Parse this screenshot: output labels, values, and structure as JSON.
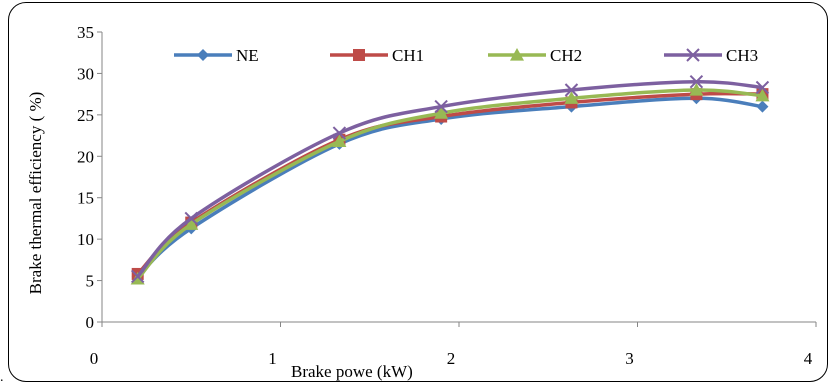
{
  "chart_data": {
    "type": "line",
    "title": "",
    "xlabel": "Brake powe (kW)",
    "ylabel": "Brake thermal efficiency ( %)",
    "xlim": [
      0,
      4
    ],
    "ylim": [
      0,
      35
    ],
    "xticks": [
      0,
      1,
      2,
      3,
      4
    ],
    "yticks": [
      0,
      5,
      10,
      15,
      20,
      25,
      30,
      35
    ],
    "grid": false,
    "smooth": true,
    "legend_position": "top",
    "series": [
      {
        "name": "NE",
        "color": "#4a7ebb",
        "marker": "diamond",
        "x": [
          0.2,
          0.5,
          1.33,
          1.9,
          2.63,
          3.33,
          3.7
        ],
        "y": [
          5.5,
          11.3,
          21.5,
          24.5,
          26.0,
          27.0,
          26.0
        ]
      },
      {
        "name": "CH1",
        "color": "#be4b48",
        "marker": "square",
        "x": [
          0.2,
          0.5,
          1.33,
          1.9,
          2.63,
          3.33,
          3.7
        ],
        "y": [
          5.8,
          12.0,
          22.0,
          24.8,
          26.5,
          27.5,
          27.5
        ]
      },
      {
        "name": "CH2",
        "color": "#98b954",
        "marker": "triangle",
        "x": [
          0.2,
          0.5,
          1.33,
          1.9,
          2.63,
          3.33,
          3.7
        ],
        "y": [
          5.2,
          11.8,
          21.8,
          25.2,
          27.0,
          28.0,
          27.3
        ]
      },
      {
        "name": "CH3",
        "color": "#7d60a0",
        "marker": "x",
        "x": [
          0.2,
          0.5,
          1.33,
          1.9,
          2.63,
          3.33,
          3.7
        ],
        "y": [
          5.5,
          12.5,
          22.8,
          26.0,
          28.0,
          29.0,
          28.3
        ]
      }
    ]
  },
  "page": {
    "stray_mark": "."
  }
}
